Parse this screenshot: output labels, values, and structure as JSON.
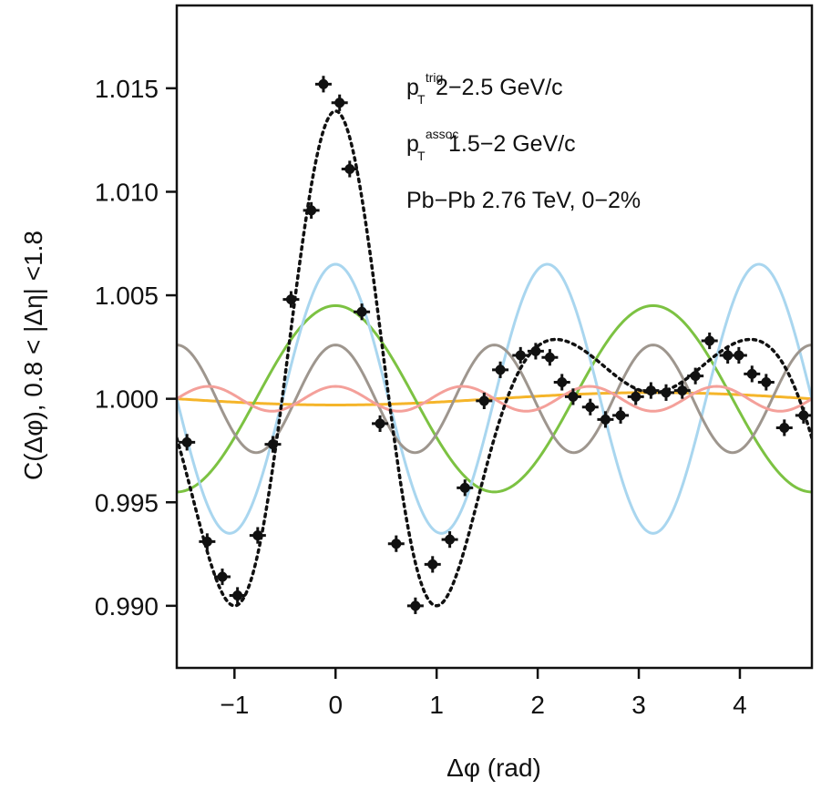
{
  "chart_data": {
    "type": "line",
    "xlabel": "Δφ (rad)",
    "ylabel": "C(Δφ),  0.8 < |Δη| <1.8",
    "xlim": [
      -1.5708,
      4.7124
    ],
    "ylim": [
      0.987,
      1.019
    ],
    "x_ticks": [
      -1,
      0,
      1,
      2,
      3,
      4
    ],
    "x_tick_labels": [
      "−1",
      "0",
      "1",
      "2",
      "3",
      "4"
    ],
    "y_ticks": [
      0.99,
      0.995,
      1.0,
      1.005,
      1.01,
      1.015
    ],
    "y_tick_labels": [
      "0.990",
      "0.995",
      "1.000",
      "1.005",
      "1.010",
      "1.015"
    ],
    "grid": false,
    "annotations": [
      {
        "main": "p",
        "sub": "T",
        "sup": "trig",
        "text": "2−2.5 GeV/c"
      },
      {
        "main": "p",
        "sub": "T",
        "sup": "assoc",
        "text": "1.5−2 GeV/c"
      },
      {
        "plain": "Pb−Pb 2.76 TeV, 0−2%"
      }
    ],
    "harmonics": [
      {
        "n": 1,
        "amplitude": -0.0003,
        "color": "#f5b52a"
      },
      {
        "n": 2,
        "amplitude": 0.0045,
        "color": "#7cc242"
      },
      {
        "n": 3,
        "amplitude": 0.0065,
        "color": "#a9d6ef"
      },
      {
        "n": 4,
        "amplitude": 0.0026,
        "color": "#9e968e"
      },
      {
        "n": 5,
        "amplitude": 0.0006,
        "color": "#f4a09a"
      }
    ],
    "fit": {
      "color": "#111111",
      "style": "dotted"
    },
    "points": {
      "x": [
        -1.47,
        -1.27,
        -1.12,
        -0.97,
        -0.77,
        -0.62,
        -0.44,
        -0.24,
        -0.12,
        0.04,
        0.14,
        0.26,
        0.44,
        0.6,
        0.79,
        0.96,
        1.13,
        1.28,
        1.47,
        1.63,
        1.83,
        1.98,
        2.12,
        2.24,
        2.35,
        2.52,
        2.67,
        2.82,
        2.97,
        3.12,
        3.27,
        3.43,
        3.56,
        3.7,
        3.88,
        3.99,
        4.12,
        4.26,
        4.44,
        4.63
      ],
      "y": [
        0.9979,
        0.9931,
        0.9914,
        0.9905,
        0.9934,
        0.9978,
        1.0048,
        1.0091,
        1.0152,
        1.0143,
        1.0111,
        1.0042,
        0.9988,
        0.993,
        0.99,
        0.992,
        0.9932,
        0.9957,
        0.9999,
        1.0014,
        1.0021,
        1.0023,
        1.002,
        1.0008,
        1.0001,
        0.9996,
        0.999,
        0.9992,
        1.0001,
        1.0004,
        1.0003,
        1.0004,
        1.0011,
        1.0028,
        1.0021,
        1.0021,
        1.0012,
        1.0008,
        0.9986,
        0.9992
      ],
      "yerr": [
        0.0004,
        0.0004,
        0.0004,
        0.0004,
        0.0004,
        0.0004,
        0.0004,
        0.0004,
        0.0004,
        0.0004,
        0.0004,
        0.0004,
        0.0004,
        0.0004,
        0.0004,
        0.0004,
        0.0004,
        0.0004,
        0.0004,
        0.0004,
        0.0004,
        0.0004,
        0.0004,
        0.0004,
        0.0004,
        0.0004,
        0.0004,
        0.0004,
        0.0004,
        0.0004,
        0.0004,
        0.0004,
        0.0004,
        0.0004,
        0.0004,
        0.0004,
        0.0004,
        0.0004,
        0.0004,
        0.0004
      ]
    }
  }
}
